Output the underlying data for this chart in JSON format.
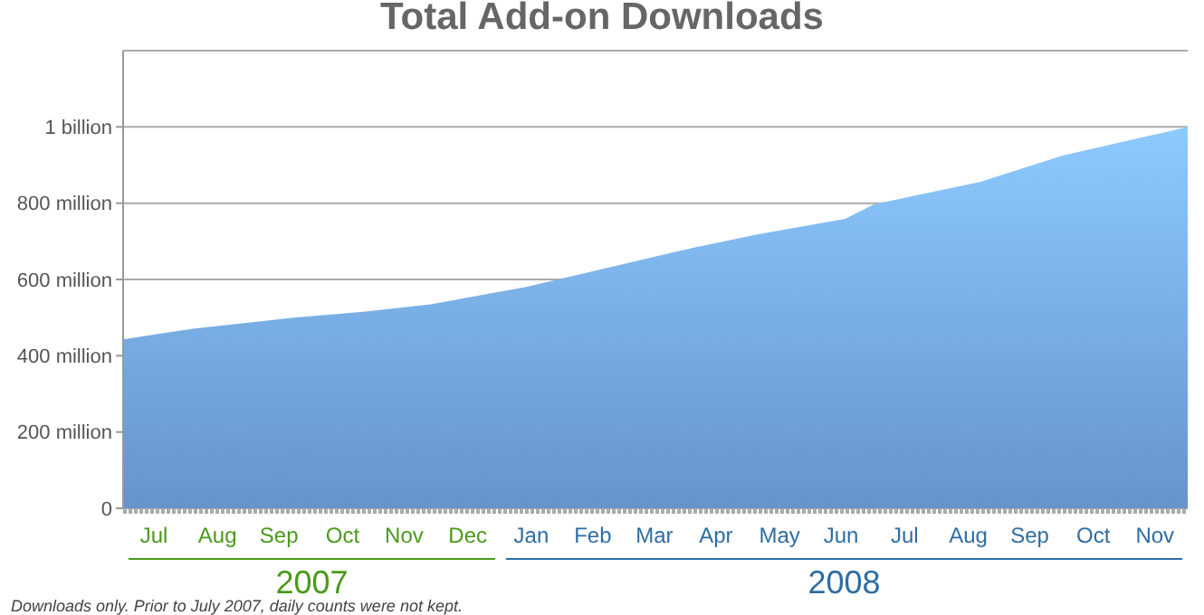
{
  "chart_data": {
    "type": "area",
    "title": "Total Add-on Downloads",
    "x": [
      "2007-07-01",
      "2007-07-18",
      "2007-08-04",
      "2007-09-22",
      "2007-10-26",
      "2007-11-28",
      "2008-01-13",
      "2008-02-06",
      "2008-03-28",
      "2008-05-04",
      "2008-06-17",
      "2008-07-01",
      "2008-08-22",
      "2008-10-01",
      "2008-11-19",
      "2008-12-01"
    ],
    "series": [
      {
        "color": "#76a9ea",
        "values": [
          443000000,
          457000000,
          471000000,
          500000000,
          515000000,
          535000000,
          580000000,
          610000000,
          675000000,
          717000000,
          759000000,
          797000000,
          856000000,
          925000000,
          985000000,
          1000000000
        ]
      }
    ],
    "xlim": [
      "2007-07-01",
      "2008-12-01"
    ],
    "xticks": [
      {
        "value": "2007-07-16",
        "label": "Jul"
      },
      {
        "value": "2007-08-16",
        "label": "Aug"
      },
      {
        "value": "2007-09-15",
        "label": "Sep"
      },
      {
        "value": "2007-10-16",
        "label": "Oct"
      },
      {
        "value": "2007-11-15",
        "label": "Nov"
      },
      {
        "value": "2007-12-16",
        "label": "Dec"
      },
      {
        "value": "2008-01-16",
        "label": "Jan"
      },
      {
        "value": "2008-02-15",
        "label": "Feb"
      },
      {
        "value": "2008-03-16",
        "label": "Mar"
      },
      {
        "value": "2008-04-15",
        "label": "Apr"
      },
      {
        "value": "2008-05-16",
        "label": "May"
      },
      {
        "value": "2008-06-15",
        "label": "Jun"
      },
      {
        "value": "2008-07-16",
        "label": "Jul"
      },
      {
        "value": "2008-08-16",
        "label": "Aug"
      },
      {
        "value": "2008-09-15",
        "label": "Sep"
      },
      {
        "value": "2008-10-16",
        "label": "Oct"
      },
      {
        "value": "2008-11-15",
        "label": "Nov"
      }
    ],
    "ylim": [
      0,
      1200000000
    ],
    "yticks": [
      0,
      {
        "value": 200000000,
        "label": "200 million"
      },
      {
        "value": 400000000,
        "label": "400 million"
      },
      {
        "value": 600000000,
        "label": "600 million"
      },
      {
        "value": 800000000,
        "label": "800 million"
      },
      {
        "value": 1000000000,
        "label": "1 billion"
      }
    ],
    "grid": "y",
    "annotations": [
      "2007",
      "2008",
      "Downloads only. Prior to July 2007, daily counts were not kept."
    ]
  }
}
